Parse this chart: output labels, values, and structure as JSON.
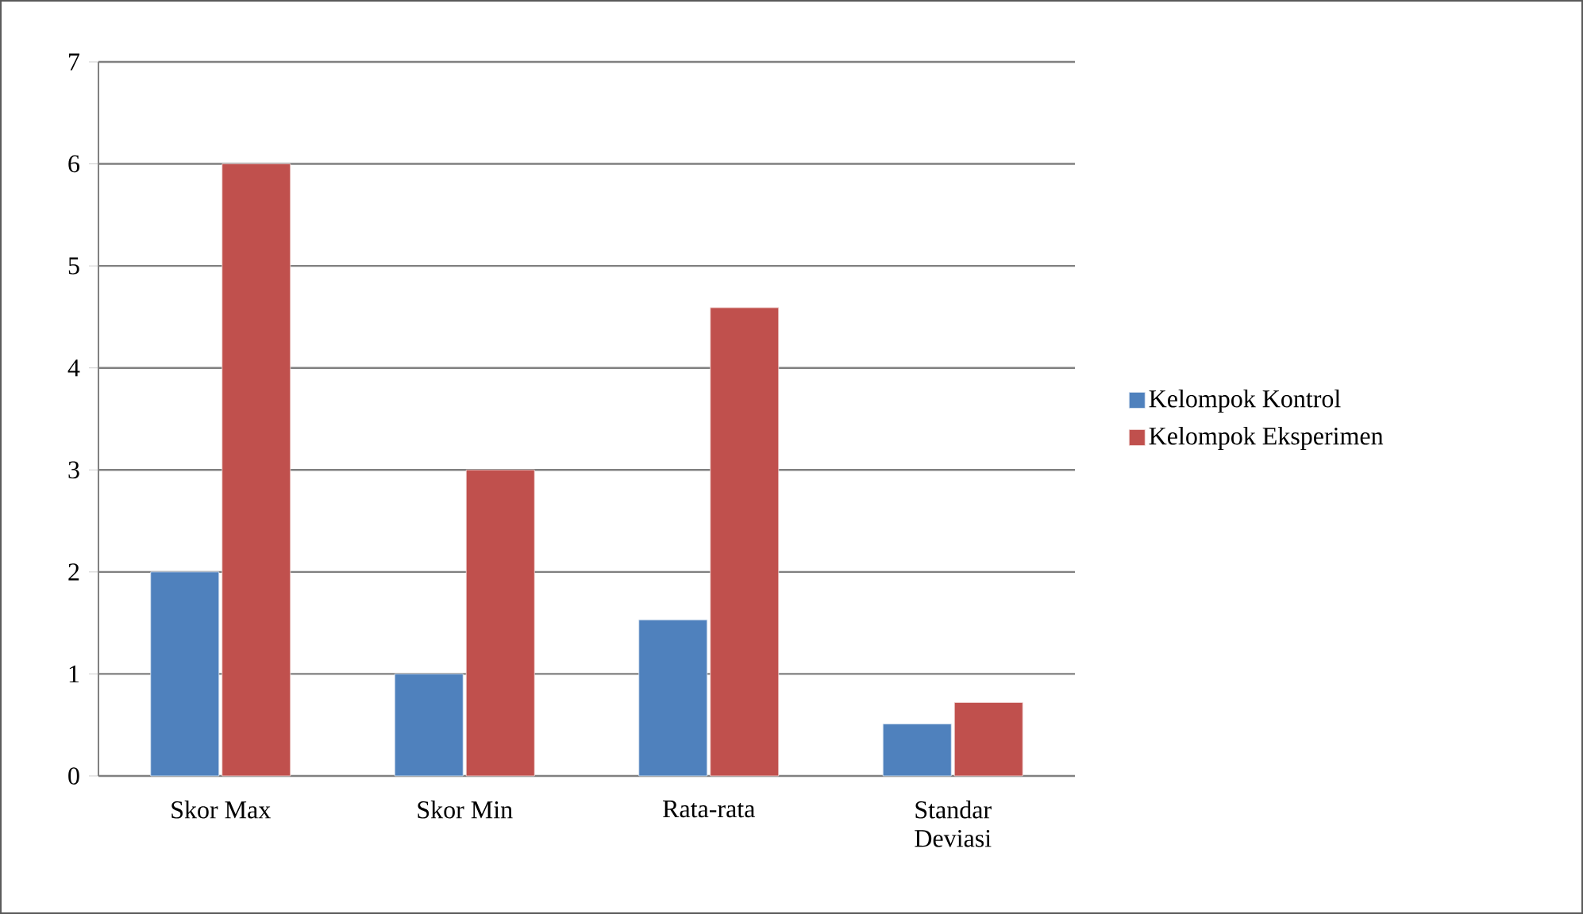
{
  "chart_data": {
    "type": "bar",
    "categories": [
      "Skor Max",
      "Skor Min",
      "Rata-rata",
      "Standar Deviasi"
    ],
    "series": [
      {
        "name": "Kelompok Kontrol",
        "color": "#4f81bd",
        "values": [
          2,
          1,
          1.53,
          0.51
        ]
      },
      {
        "name": "Kelompok Eksperimen",
        "color": "#c0504d",
        "values": [
          6,
          3,
          4.59,
          0.72
        ]
      }
    ],
    "ylim": [
      0,
      7
    ],
    "yticks": [
      0,
      1,
      2,
      3,
      4,
      5,
      6,
      7
    ],
    "grid": "y",
    "legend": "right"
  }
}
